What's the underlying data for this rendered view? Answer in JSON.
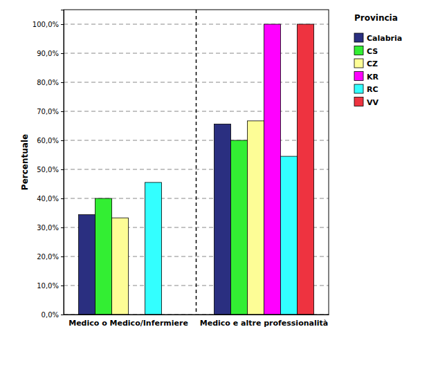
{
  "chart_data": {
    "type": "bar",
    "y_label": "Percentuale",
    "legend_title": "Provincia",
    "categories": [
      "Medico o Medico/Infermiere",
      "Medico e altre professionalità"
    ],
    "series": [
      {
        "name": "Calabria",
        "color": "#2a2f80",
        "values": [
          34.4,
          65.6
        ]
      },
      {
        "name": "CS",
        "color": "#33ee33",
        "values": [
          40.0,
          60.0
        ]
      },
      {
        "name": "CZ",
        "color": "#fdfd96",
        "values": [
          33.3,
          66.7
        ]
      },
      {
        "name": "KR",
        "color": "#ff00ff",
        "values": [
          0,
          100.0
        ]
      },
      {
        "name": "RC",
        "color": "#33ffff",
        "values": [
          45.5,
          54.5
        ]
      },
      {
        "name": "VV",
        "color": "#ee3340",
        "values": [
          0,
          100.0
        ]
      }
    ],
    "ylim": [
      0,
      105
    ],
    "yticks": [
      {
        "value": 0,
        "label": "0,0%"
      },
      {
        "value": 10,
        "label": "10,0%"
      },
      {
        "value": 20,
        "label": "20,0%"
      },
      {
        "value": 30,
        "label": "30,0%"
      },
      {
        "value": 40,
        "label": "40,0%"
      },
      {
        "value": 50,
        "label": "50,0%"
      },
      {
        "value": 60,
        "label": "60,0%"
      },
      {
        "value": 70,
        "label": "70,0%"
      },
      {
        "value": 80,
        "label": "80,0%"
      },
      {
        "value": 90,
        "label": "90,0%"
      },
      {
        "value": 100,
        "label": "100,0%"
      }
    ],
    "grid": true,
    "legend": "right"
  }
}
